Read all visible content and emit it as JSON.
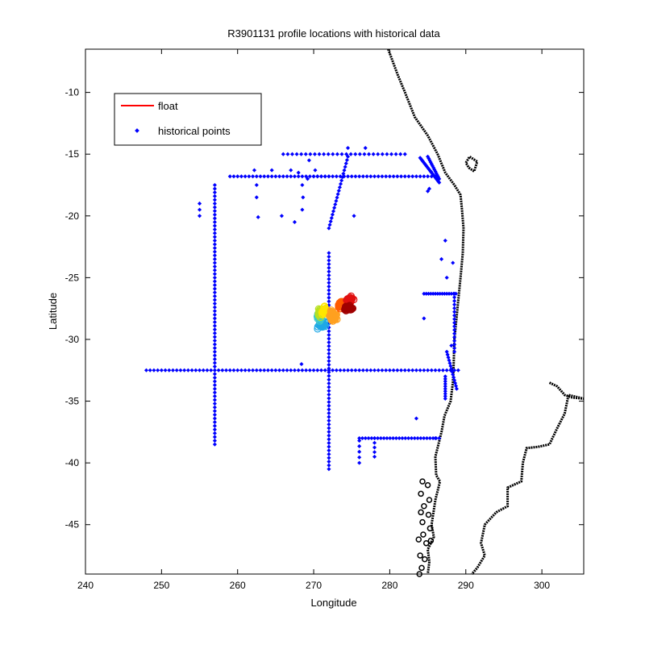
{
  "chart_data": {
    "type": "scatter",
    "title": "R3901131 profile locations with historical data",
    "xlabel": "Longitude",
    "ylabel": "Latitude",
    "xlim": [
      240,
      305.5
    ],
    "ylim": [
      -49,
      -6.5
    ],
    "xticks": [
      240,
      250,
      260,
      270,
      280,
      290,
      300
    ],
    "yticks": [
      -10,
      -15,
      -20,
      -25,
      -30,
      -35,
      -40,
      -45
    ],
    "grid": false,
    "legend": {
      "placement": "top-left",
      "entries": [
        {
          "label": "float",
          "marker": "line",
          "color": "#ff0000"
        },
        {
          "label": "historical points",
          "marker": "dot",
          "color": "#0000ff"
        }
      ]
    },
    "colors": {
      "historical": "#0000ff",
      "coast": "#000000",
      "float_gradient": [
        "#1fa8e6",
        "#3fc9c9",
        "#b8e020",
        "#ffe600",
        "#ffa020",
        "#ff5a00",
        "#e01010",
        "#a00000"
      ]
    },
    "historical_segments": [
      {
        "lon": [
          248,
          289
        ],
        "lat": [
          -32.5,
          -32.5
        ],
        "step": 0.5
      },
      {
        "lon": [
          257,
          257
        ],
        "lat": [
          -17.5,
          -38.5
        ],
        "step": 0.3
      },
      {
        "lon": [
          272,
          272
        ],
        "lat": [
          -23,
          -40.5
        ],
        "step": 0.3
      },
      {
        "lon": [
          272,
          274.5
        ],
        "lat": [
          -21,
          -15.2
        ],
        "step": 0.3
      },
      {
        "lon": [
          259,
          272
        ],
        "lat": [
          -16.8,
          -16.8
        ],
        "step": 0.5
      },
      {
        "lon": [
          270,
          286
        ],
        "lat": [
          -16.8,
          -16.8
        ],
        "step": 0.5
      },
      {
        "lon": [
          266,
          282
        ],
        "lat": [
          -15,
          -15
        ],
        "step": 0.6
      },
      {
        "lon": [
          276,
          286.5
        ],
        "lat": [
          -38,
          -38
        ],
        "step": 0.4
      },
      {
        "lon": [
          284.5,
          288.7
        ],
        "lat": [
          -26.3,
          -26.3
        ],
        "step": 0.3
      },
      {
        "lon": [
          284,
          286.5
        ],
        "lat": [
          -15.3,
          -17.3
        ],
        "step": 0.15
      },
      {
        "lon": [
          285,
          286.5
        ],
        "lat": [
          -15.2,
          -17
        ],
        "step": 0.2
      },
      {
        "lon": [
          278,
          278
        ],
        "lat": [
          -38,
          -39.5
        ],
        "step": 0.4
      },
      {
        "lon": [
          276,
          276
        ],
        "lat": [
          -38.2,
          -40
        ],
        "step": 0.4
      },
      {
        "lon": [
          288.5,
          288.5
        ],
        "lat": [
          -26.3,
          -31
        ],
        "step": 0.3
      },
      {
        "lon": [
          287.5,
          288.8
        ],
        "lat": [
          -31,
          -34
        ],
        "step": 0.25
      },
      {
        "lon": [
          287.3,
          287.3
        ],
        "lat": [
          -33,
          -34.8
        ],
        "step": 0.2
      }
    ],
    "historical_points": [
      [
        255,
        -19
      ],
      [
        255,
        -19.5
      ],
      [
        255,
        -20
      ],
      [
        262.2,
        -16.3
      ],
      [
        262.5,
        -17.5
      ],
      [
        262.5,
        -18.5
      ],
      [
        262.7,
        -20.1
      ],
      [
        264.5,
        -16.3
      ],
      [
        265.8,
        -20
      ],
      [
        267,
        -16.3
      ],
      [
        267.5,
        -20.5
      ],
      [
        268,
        -16.5
      ],
      [
        268.5,
        -19.5
      ],
      [
        268.6,
        -18.5
      ],
      [
        268.5,
        -17.5
      ],
      [
        269.2,
        -17
      ],
      [
        269.4,
        -15.5
      ],
      [
        270.2,
        -16.3
      ],
      [
        274.5,
        -14.5
      ],
      [
        276.8,
        -14.5
      ],
      [
        275.3,
        -20
      ],
      [
        287.3,
        -22
      ],
      [
        286.8,
        -23.5
      ],
      [
        287.5,
        -25
      ],
      [
        288.3,
        -23.8
      ],
      [
        284.5,
        -28.3
      ],
      [
        283.5,
        -36.4
      ],
      [
        286,
        -38
      ],
      [
        268.4,
        -32
      ],
      [
        285.4,
        -16.4
      ],
      [
        285.2,
        -17.8
      ],
      [
        285,
        -18
      ],
      [
        288.1,
        -30.5
      ]
    ],
    "coastline_main": [
      [
        279.8,
        -6.5
      ],
      [
        281,
        -8.5
      ],
      [
        282,
        -10
      ],
      [
        283.3,
        -12
      ],
      [
        285,
        -13.5
      ],
      [
        286.3,
        -15
      ],
      [
        287.3,
        -16.5
      ],
      [
        288.5,
        -17.5
      ],
      [
        289.3,
        -18.3
      ],
      [
        289.5,
        -19.5
      ],
      [
        289.7,
        -21
      ],
      [
        289.6,
        -23
      ],
      [
        289.3,
        -25
      ],
      [
        288.9,
        -27.5
      ],
      [
        288.5,
        -30
      ],
      [
        288.4,
        -32
      ],
      [
        288.3,
        -33.5
      ],
      [
        288.0,
        -35
      ],
      [
        287.2,
        -36.2
      ],
      [
        286.8,
        -37.5
      ],
      [
        286.0,
        -39.5
      ],
      [
        286.1,
        -41
      ],
      [
        286.6,
        -41.5
      ],
      [
        286.0,
        -43
      ],
      [
        285.5,
        -45
      ],
      [
        285.8,
        -46
      ],
      [
        285.0,
        -47
      ],
      [
        285.2,
        -48
      ],
      [
        285.0,
        -49
      ]
    ],
    "coastline_east": [
      [
        301,
        -33.5
      ],
      [
        302,
        -33.8
      ],
      [
        303,
        -34.5
      ],
      [
        304,
        -34.7
      ],
      [
        305.5,
        -34.8
      ],
      [
        303.5,
        -34.5
      ],
      [
        303,
        -36
      ],
      [
        302,
        -37.2
      ],
      [
        301,
        -38.5
      ],
      [
        299.5,
        -38.7
      ],
      [
        298,
        -38.8
      ],
      [
        297.5,
        -40
      ],
      [
        297.3,
        -41.5
      ],
      [
        295.5,
        -42
      ],
      [
        295.5,
        -43.5
      ],
      [
        294,
        -44
      ],
      [
        292.5,
        -45
      ],
      [
        292,
        -46.5
      ],
      [
        292.5,
        -47.5
      ],
      [
        291.5,
        -48.5
      ],
      [
        290.8,
        -49
      ]
    ],
    "coastline_island": [
      [
        290,
        -15.7
      ],
      [
        290.5,
        -15.2
      ],
      [
        291.5,
        -15.6
      ],
      [
        291.1,
        -16.4
      ],
      [
        290.4,
        -16.1
      ],
      [
        290,
        -15.7
      ]
    ],
    "chiloe_points": [
      [
        284.3,
        -41.5
      ],
      [
        285,
        -41.8
      ],
      [
        284.1,
        -42.5
      ],
      [
        285.2,
        -43
      ],
      [
        284.5,
        -43.5
      ],
      [
        284.1,
        -44
      ],
      [
        285.1,
        -44.2
      ],
      [
        284.3,
        -44.8
      ],
      [
        285.3,
        -45.3
      ],
      [
        284.4,
        -45.8
      ],
      [
        284.8,
        -46.5
      ],
      [
        284.0,
        -47.5
      ],
      [
        284.6,
        -47.8
      ],
      [
        284.2,
        -48.5
      ],
      [
        283.9,
        -49
      ],
      [
        285.4,
        -46.3
      ],
      [
        283.8,
        -46.2
      ]
    ],
    "float_clusters": [
      {
        "lon": 271.1,
        "lat": -28.8,
        "sx": 0.7,
        "sy": 0.4,
        "color_index": 0,
        "count": 40
      },
      {
        "lon": 270.8,
        "lat": -28.2,
        "sx": 0.5,
        "sy": 0.4,
        "color_index": 1,
        "count": 25
      },
      {
        "lon": 270.9,
        "lat": -27.8,
        "sx": 0.5,
        "sy": 0.5,
        "color_index": 2,
        "count": 30
      },
      {
        "lon": 271.4,
        "lat": -27.7,
        "sx": 0.4,
        "sy": 0.5,
        "color_index": 3,
        "count": 30
      },
      {
        "lon": 272.6,
        "lat": -28.1,
        "sx": 0.6,
        "sy": 0.6,
        "color_index": 4,
        "count": 50
      },
      {
        "lon": 273.6,
        "lat": -27.2,
        "sx": 0.6,
        "sy": 0.4,
        "color_index": 5,
        "count": 45
      },
      {
        "lon": 274.8,
        "lat": -26.8,
        "sx": 0.6,
        "sy": 0.35,
        "color_index": 6,
        "count": 35
      },
      {
        "lon": 274.5,
        "lat": -27.5,
        "sx": 0.8,
        "sy": 0.3,
        "color_index": 7,
        "count": 45
      }
    ]
  }
}
